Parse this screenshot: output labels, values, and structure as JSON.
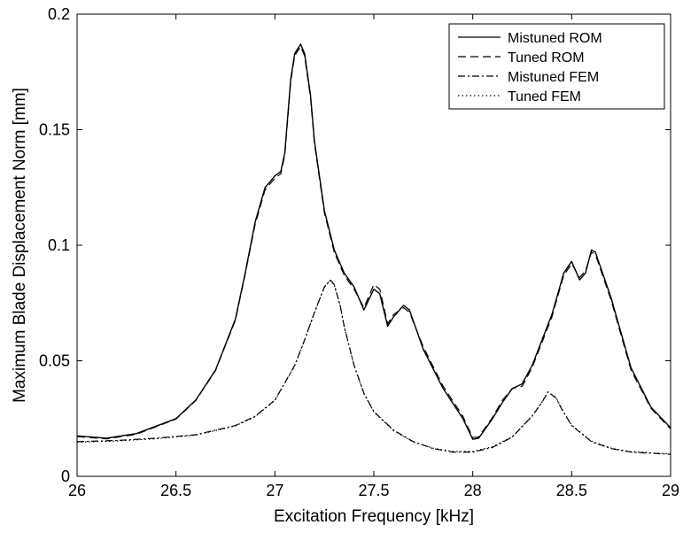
{
  "chart_data": {
    "type": "line",
    "title": "",
    "xlabel": "Excitation Frequency [kHz]",
    "ylabel": "Maximum Blade Displacement Norm [mm]",
    "xlim": [
      26,
      29
    ],
    "ylim": [
      0,
      0.2
    ],
    "xticks": [
      "26",
      "26.5",
      "27",
      "27.5",
      "28",
      "28.5",
      "29"
    ],
    "yticks": [
      "0",
      "0.05",
      "0.1",
      "0.15",
      "0.2"
    ],
    "grid": false,
    "legend_position": "top-right",
    "series": [
      {
        "name": "Mistuned ROM",
        "style": "solid",
        "x": [
          26.0,
          26.15,
          26.3,
          26.5,
          26.6,
          26.7,
          26.8,
          26.85,
          26.9,
          26.95,
          27.0,
          27.03,
          27.05,
          27.08,
          27.1,
          27.13,
          27.15,
          27.18,
          27.2,
          27.25,
          27.3,
          27.35,
          27.4,
          27.45,
          27.5,
          27.53,
          27.57,
          27.6,
          27.65,
          27.68,
          27.75,
          27.85,
          27.95,
          28.0,
          28.03,
          28.1,
          28.15,
          28.2,
          28.25,
          28.3,
          28.4,
          28.46,
          28.5,
          28.54,
          28.57,
          28.6,
          28.62,
          28.7,
          28.8,
          28.9,
          29.0
        ],
        "y": [
          0.0175,
          0.0165,
          0.0185,
          0.025,
          0.033,
          0.046,
          0.068,
          0.088,
          0.11,
          0.125,
          0.13,
          0.132,
          0.14,
          0.172,
          0.183,
          0.187,
          0.183,
          0.165,
          0.145,
          0.115,
          0.098,
          0.088,
          0.082,
          0.072,
          0.081,
          0.079,
          0.065,
          0.069,
          0.074,
          0.072,
          0.055,
          0.038,
          0.025,
          0.016,
          0.0165,
          0.025,
          0.032,
          0.038,
          0.04,
          0.048,
          0.07,
          0.088,
          0.093,
          0.085,
          0.088,
          0.098,
          0.097,
          0.077,
          0.047,
          0.03,
          0.021
        ]
      },
      {
        "name": "Tuned ROM",
        "style": "dashed",
        "x": [
          26.0,
          26.15,
          26.3,
          26.5,
          26.6,
          26.7,
          26.8,
          26.85,
          26.9,
          26.95,
          27.0,
          27.03,
          27.05,
          27.08,
          27.1,
          27.13,
          27.15,
          27.18,
          27.2,
          27.25,
          27.3,
          27.35,
          27.4,
          27.45,
          27.5,
          27.53,
          27.57,
          27.6,
          27.65,
          27.68,
          27.75,
          27.85,
          27.95,
          28.0,
          28.03,
          28.1,
          28.15,
          28.2,
          28.25,
          28.3,
          28.4,
          28.46,
          28.5,
          28.54,
          28.57,
          28.6,
          28.62,
          28.7,
          28.8,
          28.9,
          29.0
        ],
        "y": [
          0.0172,
          0.0162,
          0.0182,
          0.0248,
          0.0328,
          0.0458,
          0.0675,
          0.0875,
          0.109,
          0.124,
          0.129,
          0.131,
          0.139,
          0.171,
          0.182,
          0.186,
          0.182,
          0.164,
          0.144,
          0.114,
          0.097,
          0.087,
          0.081,
          0.073,
          0.083,
          0.081,
          0.066,
          0.07,
          0.073,
          0.071,
          0.056,
          0.039,
          0.026,
          0.0168,
          0.017,
          0.0255,
          0.033,
          0.038,
          0.039,
          0.047,
          0.069,
          0.087,
          0.092,
          0.086,
          0.089,
          0.097,
          0.096,
          0.076,
          0.046,
          0.0295,
          0.0205
        ]
      },
      {
        "name": "Mistuned FEM",
        "style": "dashdot",
        "x": [
          26.0,
          26.2,
          26.4,
          26.6,
          26.8,
          26.9,
          27.0,
          27.1,
          27.15,
          27.2,
          27.25,
          27.28,
          27.3,
          27.33,
          27.35,
          27.4,
          27.45,
          27.5,
          27.6,
          27.7,
          27.8,
          27.9,
          28.0,
          28.1,
          28.2,
          28.3,
          28.35,
          28.38,
          28.42,
          28.45,
          28.5,
          28.6,
          28.7,
          28.8,
          29.0
        ],
        "y": [
          0.015,
          0.0155,
          0.0165,
          0.018,
          0.022,
          0.026,
          0.033,
          0.048,
          0.059,
          0.071,
          0.082,
          0.085,
          0.083,
          0.074,
          0.065,
          0.048,
          0.036,
          0.028,
          0.02,
          0.015,
          0.012,
          0.0105,
          0.0105,
          0.0125,
          0.017,
          0.026,
          0.032,
          0.0365,
          0.034,
          0.029,
          0.022,
          0.015,
          0.012,
          0.0105,
          0.0095
        ]
      },
      {
        "name": "Tuned FEM",
        "style": "dotted",
        "x": [
          26.0,
          26.2,
          26.4,
          26.6,
          26.8,
          26.9,
          27.0,
          27.1,
          27.15,
          27.2,
          27.25,
          27.28,
          27.3,
          27.33,
          27.35,
          27.4,
          27.45,
          27.5,
          27.6,
          27.7,
          27.8,
          27.9,
          28.0,
          28.1,
          28.2,
          28.3,
          28.35,
          28.38,
          28.42,
          28.45,
          28.5,
          28.6,
          28.7,
          28.8,
          29.0
        ],
        "y": [
          0.0148,
          0.0153,
          0.0163,
          0.0178,
          0.0218,
          0.0258,
          0.0328,
          0.0478,
          0.0588,
          0.0708,
          0.0818,
          0.0848,
          0.0828,
          0.0738,
          0.0648,
          0.0478,
          0.0358,
          0.0278,
          0.0198,
          0.0148,
          0.0122,
          0.0108,
          0.0108,
          0.0128,
          0.0172,
          0.0262,
          0.0322,
          0.0365,
          0.0342,
          0.0292,
          0.0222,
          0.0152,
          0.0122,
          0.0107,
          0.0097
        ]
      }
    ]
  }
}
